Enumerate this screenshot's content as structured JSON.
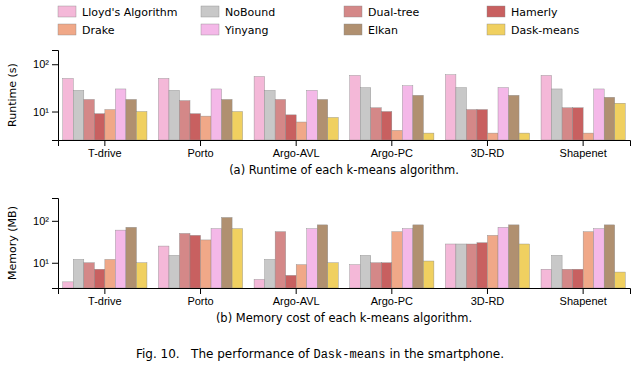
{
  "chart_data": [
    {
      "type": "bar",
      "xlabel": "(a) Runtime of each k-means algorithm.",
      "ylabel": "Runtime (s)",
      "categories": [
        "T-drive",
        "Porto",
        "Argo-AVL",
        "Argo-PC",
        "3D-RD",
        "Shapenet"
      ],
      "series": [
        {
          "name": "Lloyd's Algorithm",
          "color": "#f4b8d8",
          "values": [
            50,
            50,
            55,
            58,
            60,
            58
          ]
        },
        {
          "name": "NoBound",
          "color": "#c8c8c8",
          "values": [
            28,
            28,
            28,
            32,
            32,
            30
          ]
        },
        {
          "name": "Dual-tree",
          "color": "#d48888",
          "values": [
            18,
            17,
            18,
            12,
            11,
            12
          ]
        },
        {
          "name": "Hamerly",
          "color": "#c86060",
          "values": [
            9,
            9,
            8.5,
            10,
            11,
            12
          ]
        },
        {
          "name": "Drake",
          "color": "#f0a888",
          "values": [
            11,
            8,
            6,
            4,
            3.5,
            3.5
          ]
        },
        {
          "name": "Yinyang",
          "color": "#f4b8e8",
          "values": [
            30,
            30,
            28,
            35,
            32,
            30
          ]
        },
        {
          "name": "Elkan",
          "color": "#b09070",
          "values": [
            18,
            18,
            18,
            22,
            22,
            20
          ]
        },
        {
          "name": "Dask-means",
          "color": "#f0d060",
          "values": [
            10,
            10,
            7.5,
            3.5,
            3.5,
            15
          ]
        }
      ],
      "log": "y",
      "ylim": [
        2.5,
        200
      ],
      "yticks": [
        {
          "value": 10,
          "label": "10¹"
        },
        {
          "value": 100,
          "label": "10²"
        }
      ],
      "grid": false,
      "legend": "top"
    },
    {
      "type": "bar",
      "xlabel": "(b) Memory cost of each k-means algorithm.",
      "ylabel": "Memory (MB)",
      "categories": [
        "T-drive",
        "Porto",
        "Argo-AVL",
        "Argo-PC",
        "3D-RD",
        "Shapenet"
      ],
      "series": [
        {
          "name": "Lloyd's Algorithm",
          "color": "#f4b8d8",
          "values": [
            3.5,
            25,
            4,
            9,
            28,
            7
          ]
        },
        {
          "name": "NoBound",
          "color": "#c8c8c8",
          "values": [
            12,
            15,
            12,
            15,
            28,
            15
          ]
        },
        {
          "name": "Dual-tree",
          "color": "#d48888",
          "values": [
            10,
            50,
            55,
            10,
            28,
            7
          ]
        },
        {
          "name": "Hamerly",
          "color": "#c86060",
          "values": [
            7,
            45,
            5,
            10,
            30,
            7
          ]
        },
        {
          "name": "Drake",
          "color": "#f0a888",
          "values": [
            12,
            35,
            9,
            55,
            45,
            55
          ]
        },
        {
          "name": "Yinyang",
          "color": "#f4b8e8",
          "values": [
            60,
            65,
            65,
            65,
            70,
            65
          ]
        },
        {
          "name": "Elkan",
          "color": "#b09070",
          "values": [
            70,
            120,
            80,
            80,
            80,
            80
          ]
        },
        {
          "name": "Dask-means",
          "color": "#f0d060",
          "values": [
            10,
            65,
            10,
            11,
            28,
            6
          ]
        }
      ],
      "log": "y",
      "ylim": [
        2.5,
        350
      ],
      "yticks": [
        {
          "value": 10,
          "label": "10¹"
        },
        {
          "value": 100,
          "label": "10²"
        }
      ],
      "grid": false,
      "annotations": [
        "Fig. 10.   The performance of",
        "Dask-means",
        "in the smartphone."
      ]
    }
  ]
}
